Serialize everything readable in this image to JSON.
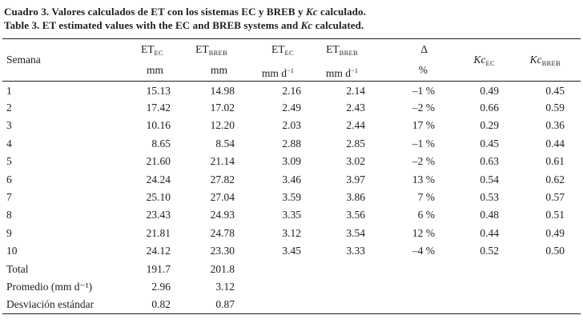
{
  "caption": {
    "es": {
      "pre": "Cuadro 3. Valores calculados de ET con los sistemas EC y BREB y ",
      "kc": "Kc",
      "post": " calculado."
    },
    "en": {
      "pre": "Table 3. ET estimated values with the EC and BREB systems and ",
      "kc": "Kc",
      "post": " calculated."
    }
  },
  "table": {
    "columns": [
      {
        "key": "semana",
        "label": "Semana"
      },
      {
        "key": "et_ec_mm",
        "main": "ET",
        "sub": "EC",
        "unit": "mm"
      },
      {
        "key": "et_breb_mm",
        "main": "ET",
        "sub": "BREB",
        "unit": "mm"
      },
      {
        "key": "et_ec_mmd",
        "main": "ET",
        "sub": "EC",
        "unit": "mm d",
        "unit_sup": "−1"
      },
      {
        "key": "et_breb_mmd",
        "main": "ET",
        "sub": "BREB",
        "unit": "mm d",
        "unit_sup": "−1"
      },
      {
        "key": "delta",
        "main": "Δ",
        "unit": "%"
      },
      {
        "key": "kc_ec",
        "main": "Kc",
        "sub": "EC"
      },
      {
        "key": "kc_breb",
        "main": "Kc",
        "sub": "BREB"
      }
    ],
    "rows": [
      {
        "semana": "1",
        "et_ec_mm": "15.13",
        "et_breb_mm": "14.98",
        "et_ec_mmd": "2.16",
        "et_breb_mmd": "2.14",
        "delta": "–1 %",
        "kc_ec": "0.49",
        "kc_breb": "0.45"
      },
      {
        "semana": "2",
        "et_ec_mm": "17.42",
        "et_breb_mm": "17.02",
        "et_ec_mmd": "2.49",
        "et_breb_mmd": "2.43",
        "delta": "–2 %",
        "kc_ec": "0.66",
        "kc_breb": "0.59"
      },
      {
        "semana": "3",
        "et_ec_mm": "10.16",
        "et_breb_mm": "12.20",
        "et_ec_mmd": "2.03",
        "et_breb_mmd": "2.44",
        "delta": "17 %",
        "kc_ec": "0.29",
        "kc_breb": "0.36"
      },
      {
        "semana": "4",
        "et_ec_mm": "8.65",
        "et_breb_mm": "8.54",
        "et_ec_mmd": "2.88",
        "et_breb_mmd": "2.85",
        "delta": "–1 %",
        "kc_ec": "0.45",
        "kc_breb": "0.44"
      },
      {
        "semana": "5",
        "et_ec_mm": "21.60",
        "et_breb_mm": "21.14",
        "et_ec_mmd": "3.09",
        "et_breb_mmd": "3.02",
        "delta": "–2 %",
        "kc_ec": "0.63",
        "kc_breb": "0.61"
      },
      {
        "semana": "6",
        "et_ec_mm": "24.24",
        "et_breb_mm": "27.82",
        "et_ec_mmd": "3.46",
        "et_breb_mmd": "3.97",
        "delta": "13 %",
        "kc_ec": "0.54",
        "kc_breb": "0.62"
      },
      {
        "semana": "7",
        "et_ec_mm": "25.10",
        "et_breb_mm": "27.04",
        "et_ec_mmd": "3.59",
        "et_breb_mmd": "3.86",
        "delta": "7 %",
        "kc_ec": "0.53",
        "kc_breb": "0.57"
      },
      {
        "semana": "8",
        "et_ec_mm": "23.43",
        "et_breb_mm": "24.93",
        "et_ec_mmd": "3.35",
        "et_breb_mmd": "3.56",
        "delta": "6 %",
        "kc_ec": "0.48",
        "kc_breb": "0.51"
      },
      {
        "semana": "9",
        "et_ec_mm": "21.81",
        "et_breb_mm": "24.78",
        "et_ec_mmd": "3.12",
        "et_breb_mmd": "3.54",
        "delta": "12 %",
        "kc_ec": "0.44",
        "kc_breb": "0.49"
      },
      {
        "semana": "10",
        "et_ec_mm": "24.12",
        "et_breb_mm": "23.30",
        "et_ec_mmd": "3.45",
        "et_breb_mmd": "3.33",
        "delta": "–4 %",
        "kc_ec": "0.52",
        "kc_breb": "0.50"
      }
    ],
    "summary_rows": [
      {
        "semana": "Total",
        "et_ec_mm": "191.7",
        "et_breb_mm": "201.8"
      },
      {
        "semana": "Promedio (mm d⁻¹)",
        "et_ec_mm": "2.96",
        "et_breb_mm": "3.12"
      },
      {
        "semana": "Desviación estándar",
        "et_ec_mm": "0.82",
        "et_breb_mm": "0.87"
      }
    ]
  }
}
